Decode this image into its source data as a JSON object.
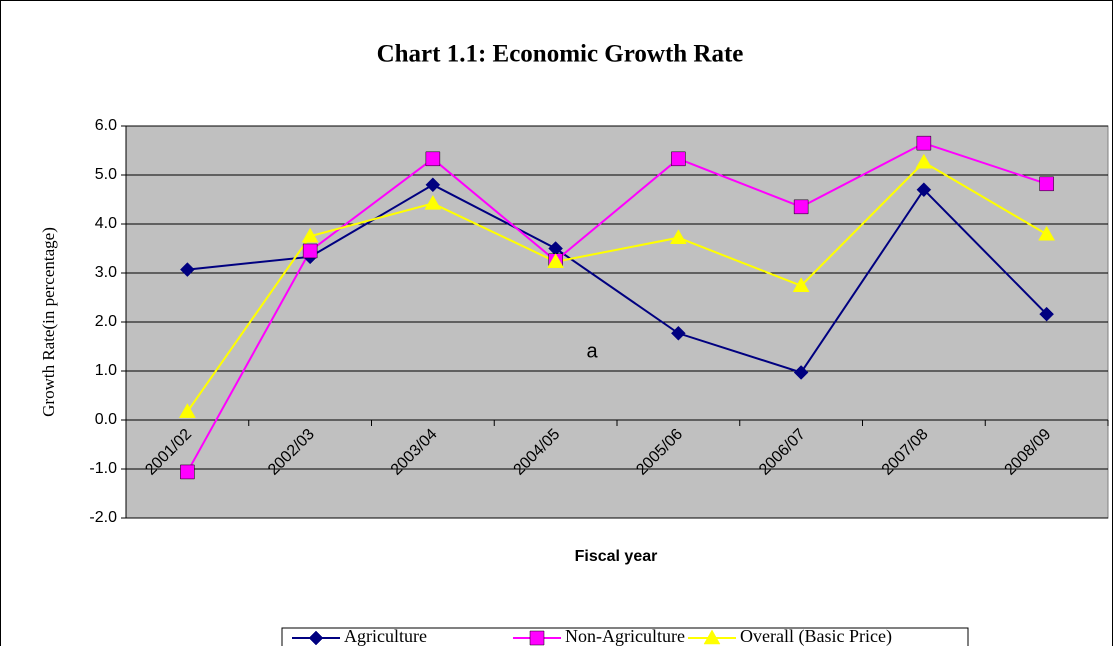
{
  "chart_data": {
    "type": "line",
    "title": "Chart 1.1: Economic Growth Rate",
    "x_label": "Fiscal year",
    "y_label": "Growth Rate(in percentage)",
    "annotation": "a",
    "categories": [
      "2001/02",
      "2002/03",
      "2003/04",
      "2004/05",
      "2005/06",
      "2006/07",
      "2007/08",
      "2008/09"
    ],
    "series": [
      {
        "name": "Agriculture",
        "color": "#000080",
        "marker": "diamond",
        "values": [
          3.07,
          3.33,
          4.8,
          3.5,
          1.77,
          0.97,
          4.7,
          2.16
        ]
      },
      {
        "name": "Non-Agriculture",
        "color": "#ff00ff",
        "marker": "square",
        "values": [
          -1.06,
          3.45,
          5.33,
          3.25,
          5.33,
          4.35,
          5.65,
          4.82
        ]
      },
      {
        "name": "Overall (Basic Price)",
        "color": "#ffff00",
        "marker": "triangle",
        "values": [
          0.17,
          3.75,
          4.42,
          3.23,
          3.72,
          2.74,
          5.26,
          3.79
        ]
      }
    ],
    "ylim": [
      -2,
      6
    ],
    "yticks": [
      {
        "value": -2,
        "label": "-2.0"
      },
      {
        "value": -1,
        "label": "-1.0"
      },
      {
        "value": 0,
        "label": "0.0"
      },
      {
        "value": 1,
        "label": "1.0"
      },
      {
        "value": 2,
        "label": "2.0"
      },
      {
        "value": 3,
        "label": "3.0"
      },
      {
        "value": 4,
        "label": "4.0"
      },
      {
        "value": 5,
        "label": "5.0"
      },
      {
        "value": 6,
        "label": "6.0"
      }
    ],
    "grid": true,
    "legend": "bottom",
    "background": "#c0c0c0"
  }
}
